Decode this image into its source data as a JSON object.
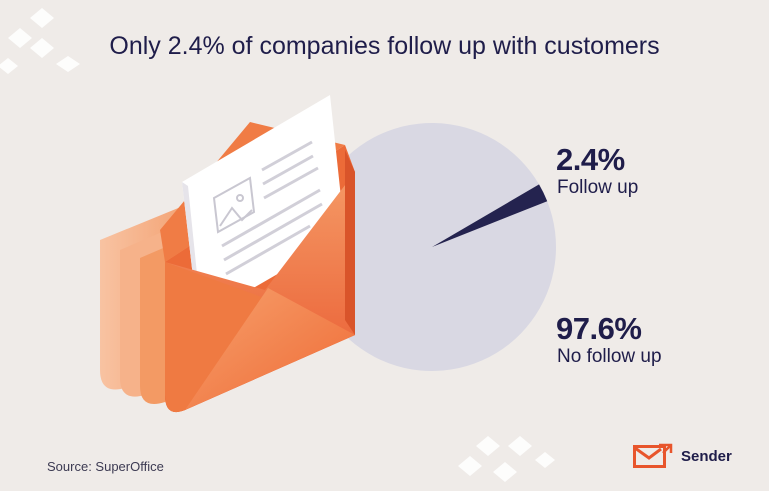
{
  "title": "Only 2.4% of companies follow up with customers",
  "chart_data": {
    "type": "pie",
    "title": "Only 2.4% of companies follow up with customers",
    "slices": [
      {
        "label": "Follow up",
        "value": 2.4,
        "display": "2.4%",
        "color": "#24234f"
      },
      {
        "label": "No follow up",
        "value": 97.6,
        "display": "97.6%",
        "color": "#d9d8e3"
      }
    ]
  },
  "source": "Source: SuperOffice",
  "brand": {
    "name": "Sender",
    "accent": "#e8552c"
  },
  "icons": {
    "illustration": "envelope-with-letter-icon",
    "logo": "sender-logo-icon"
  }
}
